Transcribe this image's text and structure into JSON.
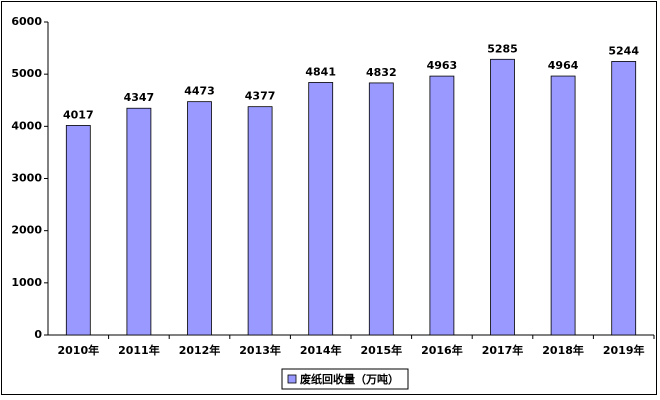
{
  "chart_data": {
    "type": "bar",
    "categories": [
      "2010年",
      "2011年",
      "2012年",
      "2013年",
      "2014年",
      "2015年",
      "2016年",
      "2017年",
      "2018年",
      "2019年"
    ],
    "series": [
      {
        "name": "废纸回收量（万吨）",
        "color": "#9999ff",
        "values": [
          4017,
          4347,
          4473,
          4377,
          4841,
          4832,
          4963,
          5285,
          4964,
          5244
        ]
      }
    ],
    "ylim": [
      0,
      6000
    ],
    "yticks": [
      0,
      1000,
      2000,
      3000,
      4000,
      5000,
      6000
    ],
    "grid": false,
    "legend": "bottom"
  }
}
